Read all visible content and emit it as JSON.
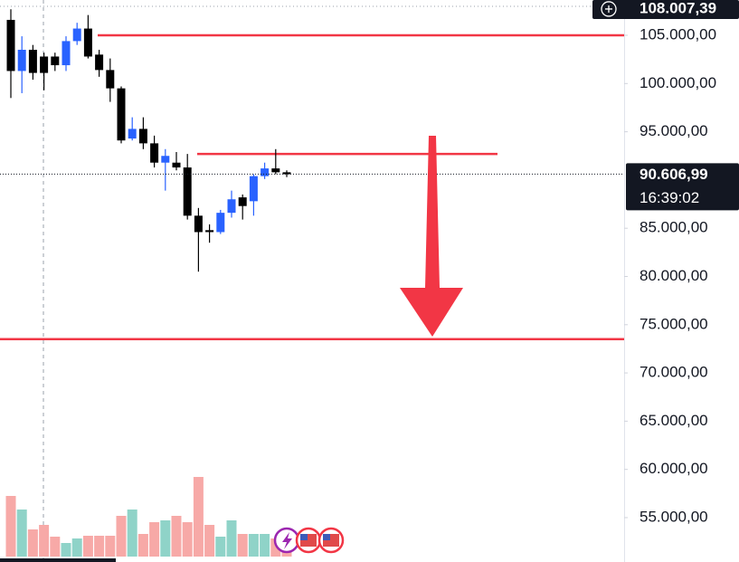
{
  "chart_data": {
    "type": "candlestick",
    "up_color": "#2962ff",
    "down_color": "#000000",
    "volume_up_color": "#8fd3c8",
    "volume_down_color": "#f7a9a7",
    "level_color": "#f23645",
    "open": [
      106600,
      101300,
      103500,
      102800,
      102800,
      101900,
      104400,
      105700,
      103000,
      101400,
      99500,
      94300,
      95300,
      93800,
      91800,
      91800,
      91300,
      86300,
      84800,
      84600,
      86600,
      88200,
      87800,
      90400,
      91200,
      90800
    ],
    "high": [
      107700,
      104900,
      104000,
      103200,
      103200,
      104900,
      106300,
      107100,
      103500,
      102600,
      99700,
      96500,
      96500,
      94600,
      93200,
      92900,
      92700,
      87100,
      85400,
      86900,
      88900,
      88500,
      90600,
      91800,
      93200,
      91000
    ],
    "low": [
      98500,
      99000,
      100400,
      99300,
      101300,
      101300,
      104000,
      102600,
      100700,
      98100,
      93800,
      94100,
      93200,
      91300,
      88900,
      91000,
      85900,
      80500,
      83500,
      84400,
      86100,
      85900,
      86300,
      90100,
      90600,
      90300
    ],
    "close": [
      101300,
      103500,
      101100,
      101100,
      101900,
      104400,
      105700,
      102800,
      101400,
      99500,
      94100,
      95300,
      93800,
      91800,
      92500,
      91300,
      86300,
      84600,
      84600,
      86600,
      88000,
      87300,
      90400,
      91200,
      90800,
      90600
    ],
    "volume": [
      67,
      52,
      30,
      35,
      22,
      15,
      20,
      23,
      23,
      23,
      45,
      52,
      25,
      38,
      40,
      45,
      38,
      88,
      35,
      22,
      40,
      25,
      25,
      25,
      20,
      12
    ],
    "levels": [
      105000,
      92700,
      73500
    ],
    "ylim": [
      50400,
      108660
    ],
    "yticks": [
      {
        "value": 105000,
        "label": "105.000,00"
      },
      {
        "value": 100000,
        "label": "100.000,00"
      },
      {
        "value": 95000,
        "label": "95.000,00"
      },
      {
        "value": 85000,
        "label": "85.000,00"
      },
      {
        "value": 80000,
        "label": "80.000,00"
      },
      {
        "value": 75000,
        "label": "75.000,00"
      },
      {
        "value": 70000,
        "label": "70.000,00"
      },
      {
        "value": 65000,
        "label": "65.000,00"
      },
      {
        "value": 60000,
        "label": "60.000,00"
      },
      {
        "value": 55000,
        "label": "55.000,00"
      }
    ],
    "last_price": {
      "value": 90606.99,
      "label": "90.606,99"
    },
    "countdown": "16:39:02",
    "high_marker": {
      "value": 108007.39,
      "label": "108.007,39"
    }
  }
}
